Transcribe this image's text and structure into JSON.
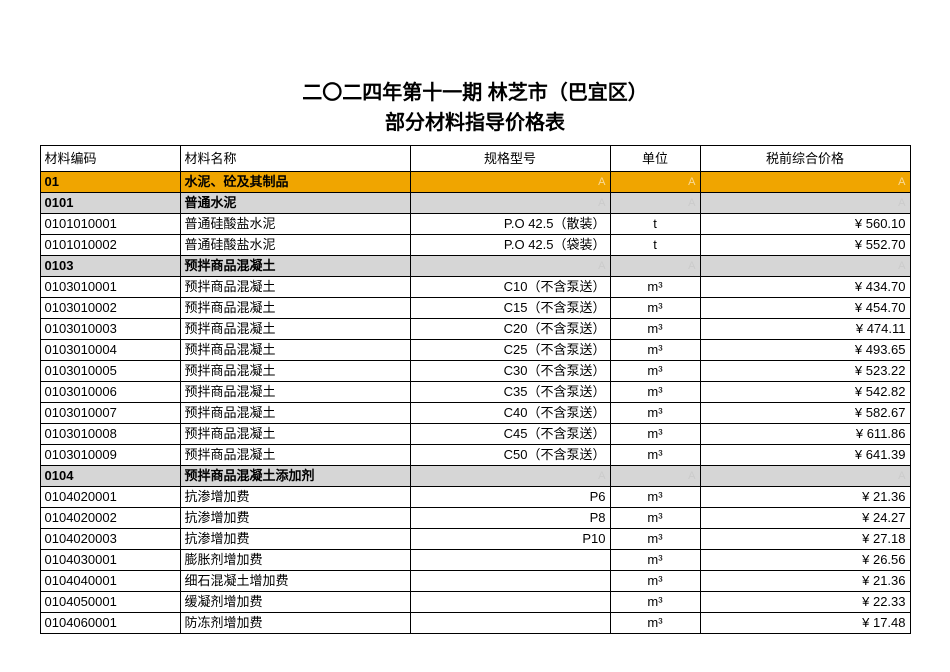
{
  "title_line1": "二〇二四年第十一期 林芝市（巴宜区）",
  "title_line2": "部分材料指导价格表",
  "headers": {
    "code": "材料编码",
    "name": "材料名称",
    "spec": "规格型号",
    "unit": "单位",
    "price": "税前综合价格"
  },
  "rows": [
    {
      "type": "orange",
      "code": "01",
      "name": "水泥、砼及其制品",
      "spec": "A",
      "unit": "A",
      "price": "A"
    },
    {
      "type": "grey",
      "code": "0101",
      "name": "普通水泥",
      "spec": "A",
      "unit": "A",
      "price": "A"
    },
    {
      "type": "data",
      "code": "0101010001",
      "name": "普通硅酸盐水泥",
      "spec": "P.O 42.5（散装）",
      "unit": "t",
      "price": "¥ 560.10"
    },
    {
      "type": "data",
      "code": "0101010002",
      "name": "普通硅酸盐水泥",
      "spec": "P.O 42.5（袋装）",
      "unit": "t",
      "price": "¥ 552.70"
    },
    {
      "type": "grey",
      "code": "0103",
      "name": "预拌商品混凝土",
      "spec": "A",
      "unit": "A",
      "price": "A"
    },
    {
      "type": "data",
      "code": "0103010001",
      "name": "预拌商品混凝土",
      "spec": "C10（不含泵送）",
      "unit": "m³",
      "price": "¥ 434.70"
    },
    {
      "type": "data",
      "code": "0103010002",
      "name": "预拌商品混凝土",
      "spec": "C15（不含泵送）",
      "unit": "m³",
      "price": "¥ 454.70"
    },
    {
      "type": "data",
      "code": "0103010003",
      "name": "预拌商品混凝土",
      "spec": "C20（不含泵送）",
      "unit": "m³",
      "price": "¥ 474.11"
    },
    {
      "type": "data",
      "code": "0103010004",
      "name": "预拌商品混凝土",
      "spec": "C25（不含泵送）",
      "unit": "m³",
      "price": "¥ 493.65"
    },
    {
      "type": "data",
      "code": "0103010005",
      "name": "预拌商品混凝土",
      "spec": "C30（不含泵送）",
      "unit": "m³",
      "price": "¥ 523.22"
    },
    {
      "type": "data",
      "code": "0103010006",
      "name": "预拌商品混凝土",
      "spec": "C35（不含泵送）",
      "unit": "m³",
      "price": "¥ 542.82"
    },
    {
      "type": "data",
      "code": "0103010007",
      "name": "预拌商品混凝土",
      "spec": "C40（不含泵送）",
      "unit": "m³",
      "price": "¥ 582.67"
    },
    {
      "type": "data",
      "code": "0103010008",
      "name": "预拌商品混凝土",
      "spec": "C45（不含泵送）",
      "unit": "m³",
      "price": "¥ 611.86"
    },
    {
      "type": "data",
      "code": "0103010009",
      "name": "预拌商品混凝土",
      "spec": "C50（不含泵送）",
      "unit": "m³",
      "price": "¥ 641.39"
    },
    {
      "type": "grey",
      "code": "0104",
      "name": "预拌商品混凝土添加剂",
      "spec": "A",
      "unit": "A",
      "price": "A"
    },
    {
      "type": "data",
      "code": "0104020001",
      "name": "抗渗增加费",
      "spec": "P6",
      "unit": "m³",
      "price": "¥ 21.36"
    },
    {
      "type": "data",
      "code": "0104020002",
      "name": "抗渗增加费",
      "spec": "P8",
      "unit": "m³",
      "price": "¥ 24.27"
    },
    {
      "type": "data",
      "code": "0104020003",
      "name": "抗渗增加费",
      "spec": "P10",
      "unit": "m³",
      "price": "¥ 27.18"
    },
    {
      "type": "data",
      "code": "0104030001",
      "name": "膨胀剂增加费",
      "spec": "",
      "unit": "m³",
      "price": "¥ 26.56"
    },
    {
      "type": "data",
      "code": "0104040001",
      "name": "细石混凝土增加费",
      "spec": "",
      "unit": "m³",
      "price": "¥ 21.36"
    },
    {
      "type": "data",
      "code": "0104050001",
      "name": "缓凝剂增加费",
      "spec": "",
      "unit": "m³",
      "price": "¥ 22.33"
    },
    {
      "type": "data",
      "code": "0104060001",
      "name": "防冻剂增加费",
      "spec": "",
      "unit": "m³",
      "price": "¥ 17.48"
    }
  ],
  "colors": {
    "orange": "#f0a500",
    "grey": "#d6d6d6",
    "border": "#000000",
    "bg": "#ffffff"
  }
}
